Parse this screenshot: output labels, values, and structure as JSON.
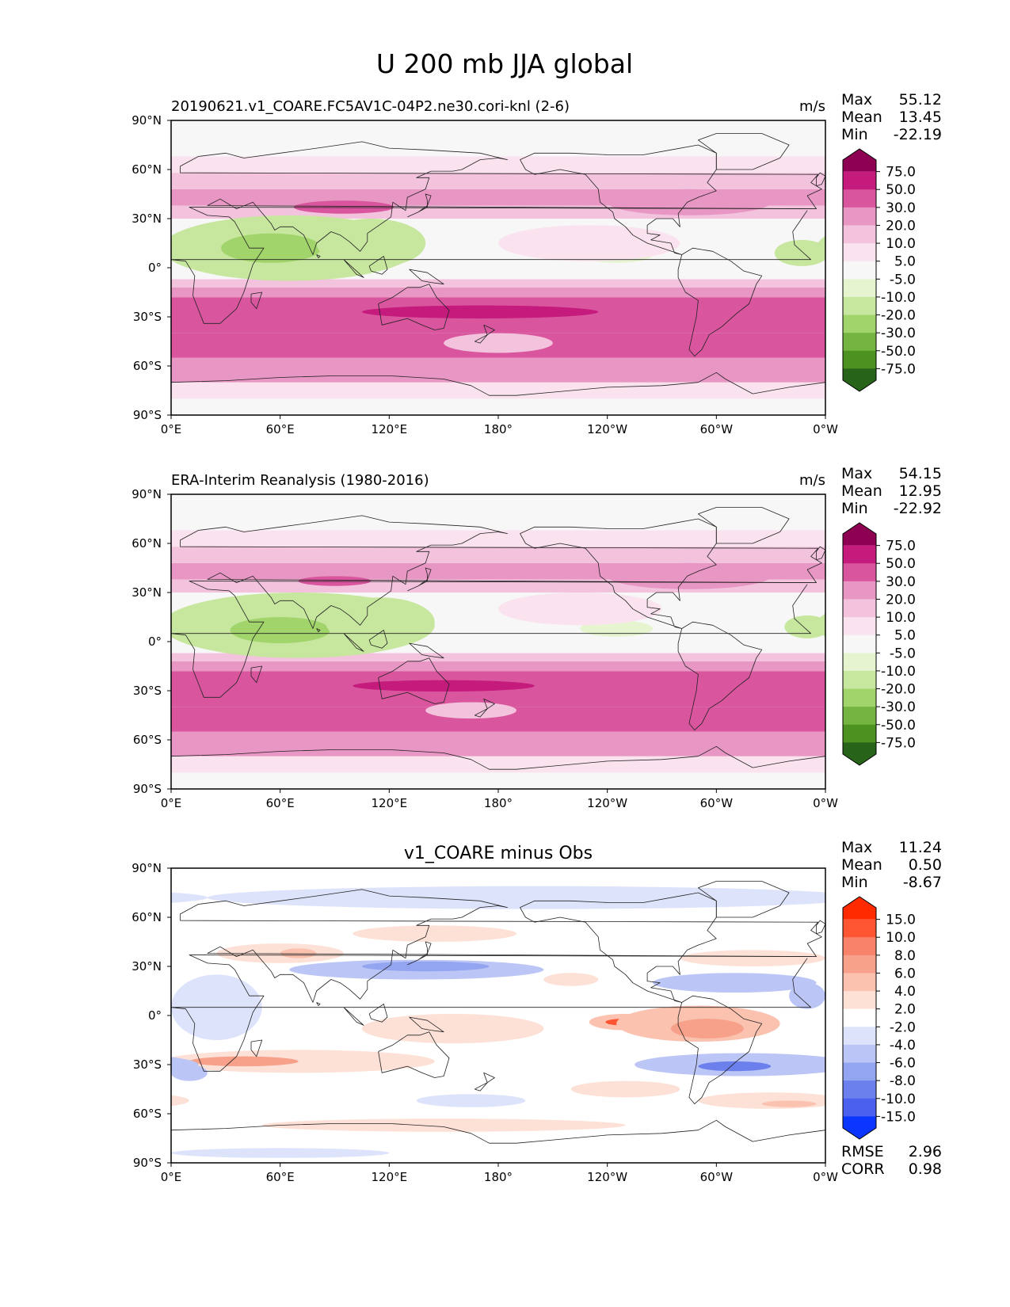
{
  "figure_title": "U 200 mb JJA global",
  "colors": {
    "continent_line": "#222222",
    "frame": "#000000",
    "background": "#ffffff"
  },
  "chart_data": [
    {
      "type": "heatmap",
      "panel": "test",
      "title_left": "20190621.v1_COARE.FC5AV1C-04P2.ne30.cori-knl (2-6)",
      "title_center": "",
      "units": "m/s",
      "stats": [
        {
          "label": "Max",
          "value": "55.12"
        },
        {
          "label": "Mean",
          "value": "13.45"
        },
        {
          "label": "Min",
          "value": "-22.19"
        }
      ],
      "colorbar": {
        "labels": [
          "75.0",
          "50.0",
          "30.0",
          "20.0",
          "10.0",
          "5.0",
          "-5.0",
          "-10.0",
          "-20.0",
          "-30.0",
          "-50.0",
          "-75.0"
        ],
        "colors": [
          "#8e0152",
          "#c51b7d",
          "#d9569e",
          "#e896c4",
          "#f3c3de",
          "#fae3ef",
          "#f7f7f7",
          "#e6f5d0",
          "#c7e79f",
          "#a1d46a",
          "#74b541",
          "#4d9221",
          "#276419"
        ]
      },
      "xticks": [
        "0°E",
        "60°E",
        "120°E",
        "180°",
        "120°W",
        "60°W",
        "0°W"
      ],
      "yticks": [
        "90°N",
        "60°N",
        "30°N",
        "0°",
        "30°S",
        "60°S",
        "90°S"
      ],
      "xlim": [
        0,
        360
      ],
      "ylim": [
        -90,
        90
      ],
      "bands": [
        {
          "lat": [
            -90,
            -80
          ],
          "value": 4
        },
        {
          "lat": [
            -80,
            -70
          ],
          "value": 8
        },
        {
          "lat": [
            -70,
            -55
          ],
          "value": 22
        },
        {
          "lat": [
            -55,
            -40
          ],
          "value": 32
        },
        {
          "lat": [
            -40,
            -18
          ],
          "value": 40
        },
        {
          "lat": [
            -18,
            -12
          ],
          "value": 22
        },
        {
          "lat": [
            -12,
            -7
          ],
          "value": 12
        },
        {
          "lat": [
            -7,
            5
          ],
          "value": 0
        },
        {
          "lat": [
            5,
            30
          ],
          "value": 2
        },
        {
          "lat": [
            30,
            38
          ],
          "value": 12
        },
        {
          "lat": [
            38,
            48
          ],
          "value": 25
        },
        {
          "lat": [
            48,
            58
          ],
          "value": 14
        },
        {
          "lat": [
            58,
            68
          ],
          "value": 8
        },
        {
          "lat": [
            68,
            90
          ],
          "value": 0
        }
      ],
      "features": [
        {
          "lon": 65,
          "lat": 12,
          "w": 140,
          "h": 40,
          "value": -15
        },
        {
          "lon": 55,
          "lat": 12,
          "w": 55,
          "h": 18,
          "value": -25
        },
        {
          "lon": 110,
          "lat": 15,
          "w": 60,
          "h": 30,
          "value": -12
        },
        {
          "lon": 347,
          "lat": 9,
          "w": 30,
          "h": 16,
          "value": -12
        },
        {
          "lon": 245,
          "lat": 8,
          "w": 40,
          "h": 10,
          "value": -8
        },
        {
          "lon": 170,
          "lat": -27,
          "w": 130,
          "h": 8,
          "value": 55
        },
        {
          "lon": 95,
          "lat": 37,
          "w": 55,
          "h": 8,
          "value": 40
        },
        {
          "lon": 285,
          "lat": 40,
          "w": 90,
          "h": 16,
          "value": 28
        },
        {
          "lon": 230,
          "lat": 15,
          "w": 100,
          "h": 22,
          "value": 10
        },
        {
          "lon": 180,
          "lat": -46,
          "w": 60,
          "h": 12,
          "value": 12
        }
      ]
    },
    {
      "type": "heatmap",
      "panel": "reference",
      "title_left": "ERA-Interim Reanalysis (1980-2016)",
      "title_center": "",
      "units": "m/s",
      "stats": [
        {
          "label": "Max",
          "value": "54.15"
        },
        {
          "label": "Mean",
          "value": "12.95"
        },
        {
          "label": "Min",
          "value": "-22.92"
        }
      ],
      "colorbar": {
        "labels": [
          "75.0",
          "50.0",
          "30.0",
          "20.0",
          "10.0",
          "5.0",
          "-5.0",
          "-10.0",
          "-20.0",
          "-30.0",
          "-50.0",
          "-75.0"
        ],
        "colors": [
          "#8e0152",
          "#c51b7d",
          "#d9569e",
          "#e896c4",
          "#f3c3de",
          "#fae3ef",
          "#f7f7f7",
          "#e6f5d0",
          "#c7e79f",
          "#a1d46a",
          "#74b541",
          "#4d9221",
          "#276419"
        ]
      },
      "xticks": [
        "0°E",
        "60°E",
        "120°E",
        "180°",
        "120°W",
        "60°W",
        "0°W"
      ],
      "yticks": [
        "90°N",
        "60°N",
        "30°N",
        "0°",
        "30°S",
        "60°S",
        "90°S"
      ],
      "xlim": [
        0,
        360
      ],
      "ylim": [
        -90,
        90
      ],
      "bands": [
        {
          "lat": [
            -90,
            -80
          ],
          "value": 4
        },
        {
          "lat": [
            -80,
            -70
          ],
          "value": 8
        },
        {
          "lat": [
            -70,
            -55
          ],
          "value": 22
        },
        {
          "lat": [
            -55,
            -40
          ],
          "value": 32
        },
        {
          "lat": [
            -40,
            -18
          ],
          "value": 40
        },
        {
          "lat": [
            -18,
            -12
          ],
          "value": 22
        },
        {
          "lat": [
            -12,
            -7
          ],
          "value": 12
        },
        {
          "lat": [
            -7,
            5
          ],
          "value": 0
        },
        {
          "lat": [
            5,
            30
          ],
          "value": 2
        },
        {
          "lat": [
            30,
            38
          ],
          "value": 12
        },
        {
          "lat": [
            38,
            48
          ],
          "value": 25
        },
        {
          "lat": [
            48,
            58
          ],
          "value": 14
        },
        {
          "lat": [
            58,
            68
          ],
          "value": 8
        },
        {
          "lat": [
            68,
            90
          ],
          "value": 3
        }
      ],
      "features": [
        {
          "lon": 70,
          "lat": 10,
          "w": 150,
          "h": 40,
          "value": -15
        },
        {
          "lon": 60,
          "lat": 7,
          "w": 55,
          "h": 16,
          "value": -25
        },
        {
          "lon": 115,
          "lat": 12,
          "w": 60,
          "h": 30,
          "value": -12
        },
        {
          "lon": 350,
          "lat": 9,
          "w": 25,
          "h": 14,
          "value": -12
        },
        {
          "lon": 245,
          "lat": 8,
          "w": 40,
          "h": 10,
          "value": -8
        },
        {
          "lon": 150,
          "lat": -27,
          "w": 100,
          "h": 7,
          "value": 55
        },
        {
          "lon": 90,
          "lat": 37,
          "w": 40,
          "h": 6,
          "value": 40
        },
        {
          "lon": 285,
          "lat": 40,
          "w": 90,
          "h": 16,
          "value": 28
        },
        {
          "lon": 225,
          "lat": 20,
          "w": 90,
          "h": 20,
          "value": 10
        },
        {
          "lon": 165,
          "lat": -42,
          "w": 50,
          "h": 10,
          "value": 12
        }
      ]
    },
    {
      "type": "heatmap",
      "panel": "difference",
      "title_left": "",
      "title_center": "v1_COARE minus Obs",
      "units": "",
      "stats": [
        {
          "label": "Max",
          "value": "11.24"
        },
        {
          "label": "Mean",
          "value": "0.50"
        },
        {
          "label": "Min",
          "value": "-8.67"
        }
      ],
      "extra_stats": [
        {
          "label": "RMSE",
          "value": "2.96"
        },
        {
          "label": "CORR",
          "value": "0.98"
        }
      ],
      "colorbar": {
        "labels": [
          "15.0",
          "10.0",
          "8.0",
          "6.0",
          "4.0",
          "2.0",
          "-2.0",
          "-4.0",
          "-6.0",
          "-8.0",
          "-10.0",
          "-15.0"
        ],
        "colors": [
          "#ff2a00",
          "#ff5533",
          "#f9826a",
          "#f7a08a",
          "#fbc2b0",
          "#fde1d6",
          "#ffffff",
          "#dde3fb",
          "#bcc6f6",
          "#93a4f0",
          "#6b80ec",
          "#4a60ee",
          "#0a36ff"
        ]
      },
      "xticks": [
        "0°E",
        "60°E",
        "120°E",
        "180°",
        "120°W",
        "60°W",
        "0°W"
      ],
      "yticks": [
        "90°N",
        "60°N",
        "30°N",
        "0°",
        "30°S",
        "60°S",
        "90°S"
      ],
      "xlim": [
        0,
        360
      ],
      "ylim": [
        -90,
        90
      ],
      "bands": [
        {
          "lat": [
            -90,
            90
          ],
          "value": 0
        }
      ],
      "features": [
        {
          "lon": 200,
          "lat": 72,
          "w": 360,
          "h": 14,
          "value": -3
        },
        {
          "lon": 135,
          "lat": 28,
          "w": 140,
          "h": 12,
          "value": -4
        },
        {
          "lon": 140,
          "lat": 30,
          "w": 70,
          "h": 6,
          "value": -7
        },
        {
          "lon": 145,
          "lat": 50,
          "w": 90,
          "h": 10,
          "value": 3
        },
        {
          "lon": 60,
          "lat": 38,
          "w": 70,
          "h": 12,
          "value": 3
        },
        {
          "lon": 70,
          "lat": 38,
          "w": 20,
          "h": 6,
          "value": 6
        },
        {
          "lon": 25,
          "lat": 5,
          "w": 50,
          "h": 40,
          "value": -3
        },
        {
          "lon": 155,
          "lat": -8,
          "w": 100,
          "h": 18,
          "value": 3
        },
        {
          "lon": 70,
          "lat": -28,
          "w": 150,
          "h": 14,
          "value": 3
        },
        {
          "lon": 40,
          "lat": -28,
          "w": 60,
          "h": 6,
          "value": 7
        },
        {
          "lon": 250,
          "lat": -4,
          "w": 40,
          "h": 10,
          "value": 6
        },
        {
          "lon": 248,
          "lat": -4,
          "w": 18,
          "h": 4,
          "value": 11
        },
        {
          "lon": 290,
          "lat": -5,
          "w": 90,
          "h": 22,
          "value": 5
        },
        {
          "lon": 295,
          "lat": -8,
          "w": 40,
          "h": 12,
          "value": 7
        },
        {
          "lon": 315,
          "lat": -30,
          "w": 120,
          "h": 14,
          "value": -4
        },
        {
          "lon": 310,
          "lat": -31,
          "w": 40,
          "h": 6,
          "value": -8
        },
        {
          "lon": 310,
          "lat": 20,
          "w": 90,
          "h": 12,
          "value": -5
        },
        {
          "lon": 320,
          "lat": 35,
          "w": 80,
          "h": 10,
          "value": 3
        },
        {
          "lon": 350,
          "lat": 12,
          "w": 20,
          "h": 16,
          "value": -5
        },
        {
          "lon": 10,
          "lat": -35,
          "w": 20,
          "h": 10,
          "value": -4
        },
        {
          "lon": 165,
          "lat": -52,
          "w": 60,
          "h": 8,
          "value": -3
        },
        {
          "lon": 250,
          "lat": -45,
          "w": 60,
          "h": 10,
          "value": 3
        },
        {
          "lon": 330,
          "lat": -52,
          "w": 80,
          "h": 10,
          "value": 3
        },
        {
          "lon": 340,
          "lat": -54,
          "w": 30,
          "h": 4,
          "value": 5
        },
        {
          "lon": 150,
          "lat": -67,
          "w": 200,
          "h": 8,
          "value": 3
        },
        {
          "lon": 60,
          "lat": -84,
          "w": 120,
          "h": 6,
          "value": -3
        },
        {
          "lon": 220,
          "lat": 22,
          "w": 30,
          "h": 8,
          "value": 3
        }
      ]
    }
  ]
}
